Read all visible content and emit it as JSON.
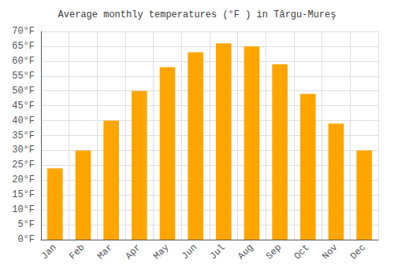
{
  "chart_data": {
    "type": "bar",
    "title": "Average monthly temperatures (°F ) in Târgu-Mureş",
    "categories": [
      "Jan",
      "Feb",
      "Mar",
      "Apr",
      "May",
      "Jun",
      "Jul",
      "Aug",
      "Sep",
      "Oct",
      "Nov",
      "Dec"
    ],
    "values": [
      24,
      30,
      40,
      50,
      58,
      63,
      66,
      65,
      59,
      49,
      39,
      30
    ],
    "color": "#FFA500",
    "ylim": [
      0,
      70
    ],
    "yticks": [
      {
        "value": 0,
        "label": "0°F"
      },
      {
        "value": 5,
        "label": "5°F"
      },
      {
        "value": 10,
        "label": "10°F"
      },
      {
        "value": 15,
        "label": "15°F"
      },
      {
        "value": 20,
        "label": "20°F"
      },
      {
        "value": 25,
        "label": "25°F"
      },
      {
        "value": 30,
        "label": "30°F"
      },
      {
        "value": 35,
        "label": "35°F"
      },
      {
        "value": 40,
        "label": "40°F"
      },
      {
        "value": 45,
        "label": "45°F"
      },
      {
        "value": 50,
        "label": "50°F"
      },
      {
        "value": 55,
        "label": "55°F"
      },
      {
        "value": 60,
        "label": "60°F"
      },
      {
        "value": 65,
        "label": "65°F"
      },
      {
        "value": 70,
        "label": "70°F"
      }
    ],
    "grid": true
  }
}
